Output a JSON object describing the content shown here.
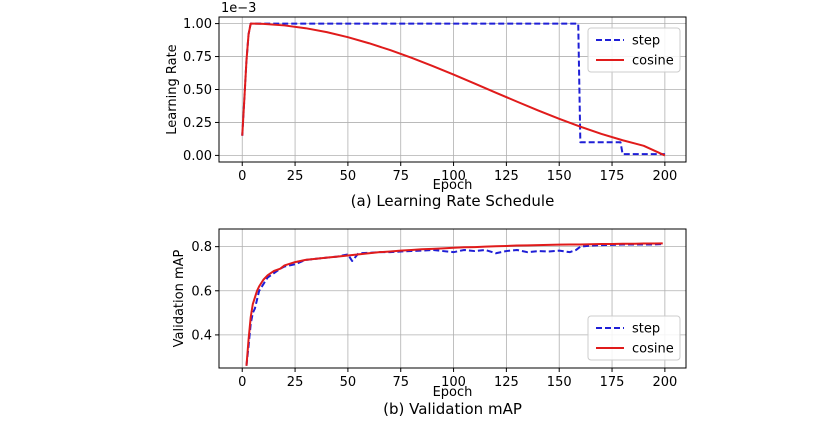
{
  "chart_data": [
    {
      "type": "line",
      "caption": "(a) Learning Rate Schedule",
      "xlabel": "Epoch",
      "ylabel": "Learning Rate",
      "offset_label": "1e−3",
      "xlim": [
        -11,
        210
      ],
      "ylim": [
        -0.05,
        1.05
      ],
      "xticks": [
        0,
        25,
        50,
        75,
        100,
        125,
        150,
        175,
        200
      ],
      "yticks": [
        0.0,
        0.25,
        0.5,
        0.75,
        1.0
      ],
      "ytick_labels": [
        "0.00",
        "0.25",
        "0.50",
        "0.75",
        "1.00"
      ],
      "grid": true,
      "legend_position": "top-right",
      "series": [
        {
          "name": "step",
          "color": "#1f1fd6",
          "style": "dashed",
          "points": [
            [
              0,
              0.15
            ],
            [
              1,
              0.43
            ],
            [
              2,
              0.72
            ],
            [
              3,
              0.92
            ],
            [
              4,
              1.0
            ],
            [
              159,
              1.0
            ],
            [
              160,
              0.1
            ],
            [
              179,
              0.1
            ],
            [
              180,
              0.01
            ],
            [
              200,
              0.01
            ]
          ]
        },
        {
          "name": "cosine",
          "color": "#e01b1b",
          "style": "solid",
          "points": [
            [
              0,
              0.15
            ],
            [
              1,
              0.43
            ],
            [
              2,
              0.72
            ],
            [
              3,
              0.92
            ],
            [
              4,
              1.0
            ],
            [
              10,
              0.998
            ],
            [
              20,
              0.986
            ],
            [
              30,
              0.965
            ],
            [
              40,
              0.935
            ],
            [
              50,
              0.897
            ],
            [
              60,
              0.851
            ],
            [
              70,
              0.799
            ],
            [
              80,
              0.741
            ],
            [
              90,
              0.679
            ],
            [
              100,
              0.613
            ],
            [
              110,
              0.545
            ],
            [
              120,
              0.476
            ],
            [
              130,
              0.408
            ],
            [
              140,
              0.341
            ],
            [
              150,
              0.278
            ],
            [
              160,
              0.218
            ],
            [
              170,
              0.163
            ],
            [
              180,
              0.115
            ],
            [
              190,
              0.073
            ],
            [
              200,
              0.0
            ]
          ]
        }
      ]
    },
    {
      "type": "line",
      "caption": "(b) Validation mAP",
      "xlabel": "Epoch",
      "ylabel": "Validation mAP",
      "xlim": [
        -11,
        210
      ],
      "ylim": [
        0.25,
        0.88
      ],
      "xticks": [
        0,
        25,
        50,
        75,
        100,
        125,
        150,
        175,
        200
      ],
      "yticks": [
        0.4,
        0.6,
        0.8
      ],
      "ytick_labels": [
        "0.4",
        "0.6",
        "0.8"
      ],
      "grid": true,
      "legend_position": "bottom-right",
      "series": [
        {
          "name": "step",
          "color": "#1f1fd6",
          "style": "dashed",
          "points": [
            [
              2,
              0.26
            ],
            [
              3,
              0.35
            ],
            [
              4,
              0.45
            ],
            [
              5,
              0.5
            ],
            [
              6,
              0.52
            ],
            [
              7,
              0.56
            ],
            [
              8,
              0.6
            ],
            [
              10,
              0.63
            ],
            [
              12,
              0.66
            ],
            [
              15,
              0.68
            ],
            [
              18,
              0.7
            ],
            [
              20,
              0.71
            ],
            [
              25,
              0.72
            ],
            [
              30,
              0.74
            ],
            [
              35,
              0.745
            ],
            [
              40,
              0.75
            ],
            [
              45,
              0.755
            ],
            [
              50,
              0.765
            ],
            [
              52,
              0.735
            ],
            [
              55,
              0.77
            ],
            [
              60,
              0.772
            ],
            [
              65,
              0.775
            ],
            [
              70,
              0.775
            ],
            [
              75,
              0.778
            ],
            [
              80,
              0.78
            ],
            [
              85,
              0.782
            ],
            [
              90,
              0.785
            ],
            [
              95,
              0.78
            ],
            [
              100,
              0.775
            ],
            [
              105,
              0.785
            ],
            [
              110,
              0.78
            ],
            [
              115,
              0.785
            ],
            [
              120,
              0.77
            ],
            [
              125,
              0.78
            ],
            [
              130,
              0.785
            ],
            [
              135,
              0.775
            ],
            [
              140,
              0.78
            ],
            [
              145,
              0.778
            ],
            [
              150,
              0.782
            ],
            [
              155,
              0.775
            ],
            [
              158,
              0.785
            ],
            [
              160,
              0.8
            ],
            [
              165,
              0.805
            ],
            [
              170,
              0.807
            ],
            [
              175,
              0.808
            ],
            [
              180,
              0.81
            ],
            [
              185,
              0.81
            ],
            [
              190,
              0.81
            ],
            [
              195,
              0.81
            ],
            [
              199,
              0.812
            ]
          ]
        },
        {
          "name": "cosine",
          "color": "#e01b1b",
          "style": "solid",
          "points": [
            [
              2,
              0.26
            ],
            [
              3,
              0.38
            ],
            [
              4,
              0.48
            ],
            [
              5,
              0.54
            ],
            [
              6,
              0.57
            ],
            [
              7,
              0.6
            ],
            [
              8,
              0.62
            ],
            [
              10,
              0.65
            ],
            [
              12,
              0.67
            ],
            [
              15,
              0.69
            ],
            [
              18,
              0.7
            ],
            [
              20,
              0.715
            ],
            [
              25,
              0.73
            ],
            [
              30,
              0.74
            ],
            [
              35,
              0.745
            ],
            [
              40,
              0.75
            ],
            [
              45,
              0.755
            ],
            [
              50,
              0.76
            ],
            [
              55,
              0.765
            ],
            [
              60,
              0.77
            ],
            [
              65,
              0.775
            ],
            [
              70,
              0.778
            ],
            [
              75,
              0.782
            ],
            [
              80,
              0.785
            ],
            [
              85,
              0.788
            ],
            [
              90,
              0.79
            ],
            [
              95,
              0.792
            ],
            [
              100,
              0.795
            ],
            [
              105,
              0.797
            ],
            [
              110,
              0.798
            ],
            [
              115,
              0.8
            ],
            [
              120,
              0.802
            ],
            [
              125,
              0.803
            ],
            [
              130,
              0.805
            ],
            [
              135,
              0.806
            ],
            [
              140,
              0.807
            ],
            [
              145,
              0.808
            ],
            [
              150,
              0.809
            ],
            [
              155,
              0.81
            ],
            [
              160,
              0.81
            ],
            [
              165,
              0.811
            ],
            [
              170,
              0.812
            ],
            [
              175,
              0.812
            ],
            [
              180,
              0.813
            ],
            [
              185,
              0.813
            ],
            [
              190,
              0.814
            ],
            [
              195,
              0.814
            ],
            [
              199,
              0.815
            ]
          ]
        }
      ]
    }
  ]
}
